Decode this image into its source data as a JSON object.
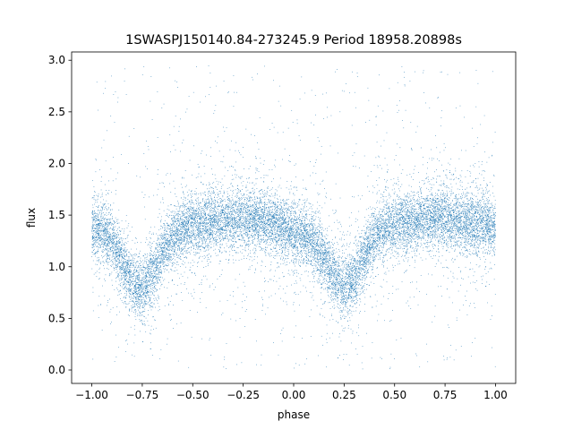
{
  "chart_data": {
    "type": "scatter",
    "title": "1SWASPJ150140.84-273245.9 Period 18958.20898s",
    "xlabel": "phase",
    "ylabel": "flux",
    "xlim": [
      -1.1,
      1.1
    ],
    "ylim": [
      -0.13,
      3.08
    ],
    "xticks": [
      -1.0,
      -0.75,
      -0.5,
      -0.25,
      0.0,
      0.25,
      0.5,
      0.75,
      1.0
    ],
    "xtick_labels": [
      "−1.00",
      "−0.75",
      "−0.50",
      "−0.25",
      "0.00",
      "0.25",
      "0.50",
      "0.75",
      "1.00"
    ],
    "yticks": [
      0.0,
      0.5,
      1.0,
      1.5,
      2.0,
      2.5,
      3.0
    ],
    "ytick_labels": [
      "0.0",
      "0.5",
      "1.0",
      "1.5",
      "2.0",
      "2.5",
      "3.0"
    ],
    "grid": false,
    "marker_color": "#1f77b4",
    "phase_range": [
      -1.0,
      1.0
    ],
    "light_curve_profile": {
      "phase": [
        -1.0,
        -0.95,
        -0.9,
        -0.85,
        -0.8,
        -0.75,
        -0.7,
        -0.65,
        -0.6,
        -0.55,
        -0.5,
        -0.45,
        -0.4,
        -0.35,
        -0.3,
        -0.25,
        -0.2,
        -0.15,
        -0.1,
        -0.05,
        0.0,
        0.05,
        0.1,
        0.15,
        0.2,
        0.25,
        0.3,
        0.35,
        0.4,
        0.45,
        0.5,
        0.55,
        0.6,
        0.65,
        0.7,
        0.75,
        0.8,
        0.85,
        0.9,
        0.95,
        1.0
      ],
      "flux": [
        1.38,
        1.35,
        1.25,
        1.05,
        0.85,
        0.78,
        0.92,
        1.15,
        1.3,
        1.36,
        1.4,
        1.42,
        1.44,
        1.46,
        1.47,
        1.47,
        1.46,
        1.44,
        1.42,
        1.38,
        1.35,
        1.3,
        1.22,
        1.08,
        0.9,
        0.8,
        0.88,
        1.1,
        1.28,
        1.36,
        1.4,
        1.42,
        1.44,
        1.46,
        1.47,
        1.47,
        1.46,
        1.44,
        1.42,
        1.4,
        1.38
      ]
    },
    "point_count": 16000,
    "scatter_spread": 0.14,
    "outlier_range": [
      0.0,
      2.95
    ]
  }
}
